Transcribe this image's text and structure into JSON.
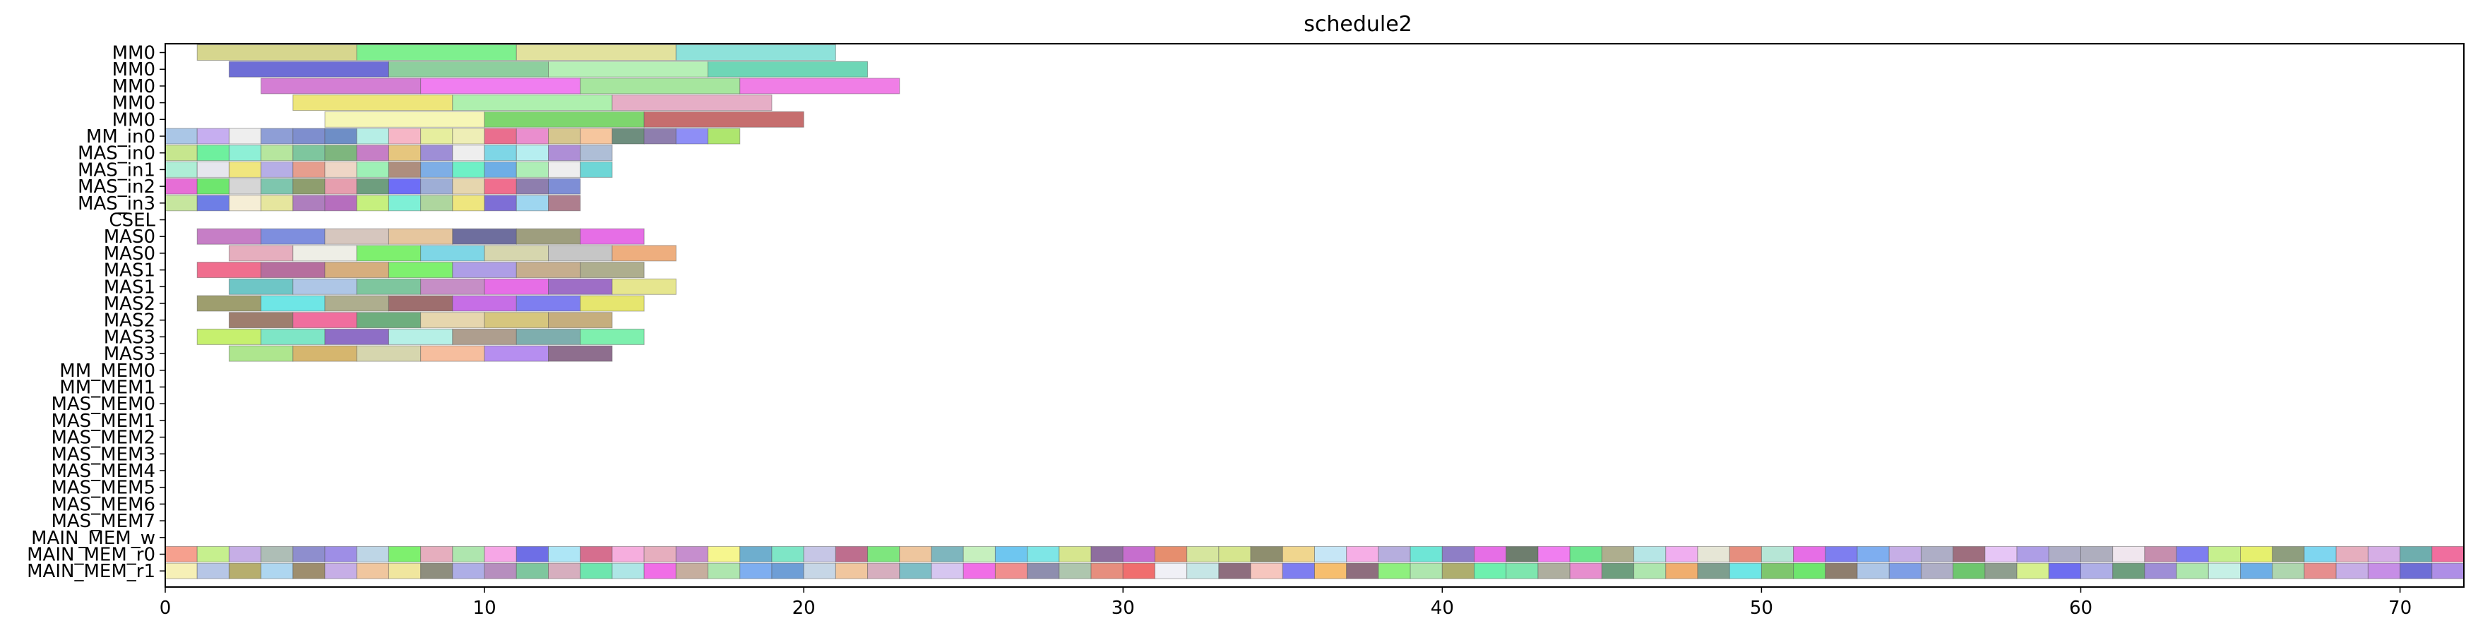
{
  "chart_data": {
    "type": "gantt",
    "title": "schedule2",
    "xlabel": "",
    "ylabel": "",
    "xlim": [
      0,
      72
    ],
    "x_ticks": [
      0,
      10,
      20,
      30,
      40,
      50,
      60,
      70
    ],
    "grid": false,
    "rows": [
      "MM0",
      "MM0",
      "MM0",
      "MM0",
      "MM0",
      "MM_in0",
      "MAS_in0",
      "MAS_in1",
      "MAS_in2",
      "MAS_in3",
      "CSEL",
      "MAS0",
      "MAS0",
      "MAS1",
      "MAS1",
      "MAS2",
      "MAS2",
      "MAS3",
      "MAS3",
      "MM_MEM0",
      "MM_MEM1",
      "MAS_MEM0",
      "MAS_MEM1",
      "MAS_MEM2",
      "MAS_MEM3",
      "MAS_MEM4",
      "MAS_MEM5",
      "MAS_MEM6",
      "MAS_MEM7",
      "MAIN_MEM_w",
      "MAIN_MEM_r0",
      "MAIN_MEM_r1"
    ],
    "tasks": [
      {
        "row": 0,
        "start": 1,
        "end": 6,
        "color": "#d6d68e"
      },
      {
        "row": 0,
        "start": 6,
        "end": 11,
        "color": "#7ef08e"
      },
      {
        "row": 0,
        "start": 11,
        "end": 16,
        "color": "#e2e29e"
      },
      {
        "row": 0,
        "start": 16,
        "end": 21,
        "color": "#8ee2da"
      },
      {
        "row": 1,
        "start": 2,
        "end": 7,
        "color": "#6e6ed6"
      },
      {
        "row": 1,
        "start": 7,
        "end": 12,
        "color": "#8ecf9e"
      },
      {
        "row": 1,
        "start": 12,
        "end": 17,
        "color": "#b6f0b6"
      },
      {
        "row": 1,
        "start": 17,
        "end": 22,
        "color": "#6ed6b6"
      },
      {
        "row": 2,
        "start": 3,
        "end": 8,
        "color": "#d47ed4"
      },
      {
        "row": 2,
        "start": 8,
        "end": 13,
        "color": "#f07ef0"
      },
      {
        "row": 2,
        "start": 13,
        "end": 18,
        "color": "#a6e69e"
      },
      {
        "row": 2,
        "start": 18,
        "end": 23,
        "color": "#f07ee6"
      },
      {
        "row": 3,
        "start": 4,
        "end": 9,
        "color": "#eee67a"
      },
      {
        "row": 3,
        "start": 9,
        "end": 14,
        "color": "#aef0ae"
      },
      {
        "row": 3,
        "start": 14,
        "end": 19,
        "color": "#e6aec6"
      },
      {
        "row": 4,
        "start": 5,
        "end": 10,
        "color": "#f6f6b6"
      },
      {
        "row": 4,
        "start": 10,
        "end": 15,
        "color": "#7ed66e"
      },
      {
        "row": 4,
        "start": 15,
        "end": 20,
        "color": "#c66e6e"
      },
      {
        "row": 5,
        "start": 0,
        "end": 1,
        "color": "#aac6e6"
      },
      {
        "row": 5,
        "start": 1,
        "end": 2,
        "color": "#c6aef0"
      },
      {
        "row": 5,
        "start": 2,
        "end": 3,
        "color": "#eeeeee"
      },
      {
        "row": 5,
        "start": 3,
        "end": 4,
        "color": "#8e9ed6"
      },
      {
        "row": 5,
        "start": 4,
        "end": 5,
        "color": "#7e8ece"
      },
      {
        "row": 5,
        "start": 5,
        "end": 6,
        "color": "#6e8ec6"
      },
      {
        "row": 5,
        "start": 6,
        "end": 7,
        "color": "#b6eee6"
      },
      {
        "row": 5,
        "start": 7,
        "end": 8,
        "color": "#f6b6c6"
      },
      {
        "row": 5,
        "start": 8,
        "end": 9,
        "color": "#e6ee9e"
      },
      {
        "row": 5,
        "start": 9,
        "end": 10,
        "color": "#eeeeb6"
      },
      {
        "row": 5,
        "start": 10,
        "end": 11,
        "color": "#ea6e8e"
      },
      {
        "row": 5,
        "start": 11,
        "end": 12,
        "color": "#ea8ece"
      },
      {
        "row": 5,
        "start": 12,
        "end": 13,
        "color": "#d6c68e"
      },
      {
        "row": 5,
        "start": 13,
        "end": 14,
        "color": "#f6c69e"
      },
      {
        "row": 5,
        "start": 14,
        "end": 15,
        "color": "#6e8e7e"
      },
      {
        "row": 5,
        "start": 15,
        "end": 16,
        "color": "#8e7eae"
      },
      {
        "row": 5,
        "start": 16,
        "end": 17,
        "color": "#8e8ef6"
      },
      {
        "row": 5,
        "start": 17,
        "end": 18,
        "color": "#aee66e"
      },
      {
        "row": 6,
        "start": 0,
        "end": 1,
        "color": "#c6e68e"
      },
      {
        "row": 6,
        "start": 1,
        "end": 2,
        "color": "#6ef09e"
      },
      {
        "row": 6,
        "start": 2,
        "end": 3,
        "color": "#8ef0d6"
      },
      {
        "row": 6,
        "start": 3,
        "end": 4,
        "color": "#b6e69e"
      },
      {
        "row": 6,
        "start": 4,
        "end": 5,
        "color": "#7ec69e"
      },
      {
        "row": 6,
        "start": 5,
        "end": 6,
        "color": "#7eb67e"
      },
      {
        "row": 6,
        "start": 6,
        "end": 7,
        "color": "#c67ec6"
      },
      {
        "row": 6,
        "start": 7,
        "end": 8,
        "color": "#e6c67e"
      },
      {
        "row": 6,
        "start": 8,
        "end": 9,
        "color": "#9e8ed6"
      },
      {
        "row": 6,
        "start": 9,
        "end": 10,
        "color": "#eeeeee"
      },
      {
        "row": 6,
        "start": 10,
        "end": 11,
        "color": "#7ed6e6"
      },
      {
        "row": 6,
        "start": 11,
        "end": 12,
        "color": "#b6eef0"
      },
      {
        "row": 6,
        "start": 12,
        "end": 13,
        "color": "#ae8ed6"
      },
      {
        "row": 6,
        "start": 13,
        "end": 14,
        "color": "#aebed6"
      },
      {
        "row": 7,
        "start": 0,
        "end": 1,
        "color": "#aeeed6"
      },
      {
        "row": 7,
        "start": 1,
        "end": 2,
        "color": "#e6e6ee"
      },
      {
        "row": 7,
        "start": 2,
        "end": 3,
        "color": "#f0e67e"
      },
      {
        "row": 7,
        "start": 3,
        "end": 4,
        "color": "#b6aee6"
      },
      {
        "row": 7,
        "start": 4,
        "end": 5,
        "color": "#e69e8e"
      },
      {
        "row": 7,
        "start": 5,
        "end": 6,
        "color": "#eed6c6"
      },
      {
        "row": 7,
        "start": 6,
        "end": 7,
        "color": "#9ef0b6"
      },
      {
        "row": 7,
        "start": 7,
        "end": 8,
        "color": "#ae8e7e"
      },
      {
        "row": 7,
        "start": 8,
        "end": 9,
        "color": "#7eaee6"
      },
      {
        "row": 7,
        "start": 9,
        "end": 10,
        "color": "#6ef0c6"
      },
      {
        "row": 7,
        "start": 10,
        "end": 11,
        "color": "#6eaee6"
      },
      {
        "row": 7,
        "start": 11,
        "end": 12,
        "color": "#aeeeb6"
      },
      {
        "row": 7,
        "start": 12,
        "end": 13,
        "color": "#eeeeee"
      },
      {
        "row": 7,
        "start": 13,
        "end": 14,
        "color": "#6ed6d6"
      },
      {
        "row": 8,
        "start": 0,
        "end": 1,
        "color": "#e66ed6"
      },
      {
        "row": 8,
        "start": 1,
        "end": 2,
        "color": "#6ee66e"
      },
      {
        "row": 8,
        "start": 2,
        "end": 3,
        "color": "#d6d6d6"
      },
      {
        "row": 8,
        "start": 3,
        "end": 4,
        "color": "#7ec6ae"
      },
      {
        "row": 8,
        "start": 4,
        "end": 5,
        "color": "#8e9e6e"
      },
      {
        "row": 8,
        "start": 5,
        "end": 6,
        "color": "#e69eae"
      },
      {
        "row": 8,
        "start": 6,
        "end": 7,
        "color": "#6e9e7e"
      },
      {
        "row": 8,
        "start": 7,
        "end": 8,
        "color": "#6e6ef6"
      },
      {
        "row": 8,
        "start": 8,
        "end": 9,
        "color": "#9eaed6"
      },
      {
        "row": 8,
        "start": 9,
        "end": 10,
        "color": "#e6d6ae"
      },
      {
        "row": 8,
        "start": 10,
        "end": 11,
        "color": "#f06e8e"
      },
      {
        "row": 8,
        "start": 11,
        "end": 12,
        "color": "#8e7eae"
      },
      {
        "row": 8,
        "start": 12,
        "end": 13,
        "color": "#7e8ed6"
      },
      {
        "row": 9,
        "start": 0,
        "end": 1,
        "color": "#c6e69e"
      },
      {
        "row": 9,
        "start": 1,
        "end": 2,
        "color": "#6e7ee6"
      },
      {
        "row": 9,
        "start": 2,
        "end": 3,
        "color": "#f6eed6"
      },
      {
        "row": 9,
        "start": 3,
        "end": 4,
        "color": "#e6e69e"
      },
      {
        "row": 9,
        "start": 4,
        "end": 5,
        "color": "#ae7ebe"
      },
      {
        "row": 9,
        "start": 5,
        "end": 6,
        "color": "#b66ebe"
      },
      {
        "row": 9,
        "start": 6,
        "end": 7,
        "color": "#c6f07e"
      },
      {
        "row": 9,
        "start": 7,
        "end": 8,
        "color": "#7ef0d6"
      },
      {
        "row": 9,
        "start": 8,
        "end": 9,
        "color": "#aed69e"
      },
      {
        "row": 9,
        "start": 9,
        "end": 10,
        "color": "#eee67e"
      },
      {
        "row": 9,
        "start": 10,
        "end": 11,
        "color": "#7e6ed6"
      },
      {
        "row": 9,
        "start": 11,
        "end": 12,
        "color": "#9ed6f0"
      },
      {
        "row": 9,
        "start": 12,
        "end": 13,
        "color": "#ae7e8e"
      },
      {
        "row": 11,
        "start": 1,
        "end": 3,
        "color": "#c67ec6"
      },
      {
        "row": 11,
        "start": 3,
        "end": 5,
        "color": "#7e8ede"
      },
      {
        "row": 11,
        "start": 5,
        "end": 7,
        "color": "#d6c6be"
      },
      {
        "row": 11,
        "start": 7,
        "end": 9,
        "color": "#e6c69e"
      },
      {
        "row": 11,
        "start": 9,
        "end": 11,
        "color": "#6e6e9e"
      },
      {
        "row": 11,
        "start": 11,
        "end": 13,
        "color": "#9e9e7e"
      },
      {
        "row": 11,
        "start": 13,
        "end": 15,
        "color": "#e66ee6"
      },
      {
        "row": 12,
        "start": 2,
        "end": 4,
        "color": "#e6aebe"
      },
      {
        "row": 12,
        "start": 4,
        "end": 6,
        "color": "#eeeee6"
      },
      {
        "row": 12,
        "start": 6,
        "end": 8,
        "color": "#7ef06e"
      },
      {
        "row": 12,
        "start": 8,
        "end": 10,
        "color": "#7ed6e6"
      },
      {
        "row": 12,
        "start": 10,
        "end": 12,
        "color": "#d6d6ae"
      },
      {
        "row": 12,
        "start": 12,
        "end": 14,
        "color": "#c6c6c6"
      },
      {
        "row": 12,
        "start": 14,
        "end": 16,
        "color": "#eeae7e"
      },
      {
        "row": 13,
        "start": 1,
        "end": 3,
        "color": "#f06e8e"
      },
      {
        "row": 13,
        "start": 3,
        "end": 5,
        "color": "#b66e9e"
      },
      {
        "row": 13,
        "start": 5,
        "end": 7,
        "color": "#d6ae7e"
      },
      {
        "row": 13,
        "start": 7,
        "end": 9,
        "color": "#7ef06e"
      },
      {
        "row": 13,
        "start": 9,
        "end": 11,
        "color": "#ae9ee6"
      },
      {
        "row": 13,
        "start": 11,
        "end": 13,
        "color": "#c6ae8e"
      },
      {
        "row": 13,
        "start": 13,
        "end": 15,
        "color": "#aeae8e"
      },
      {
        "row": 14,
        "start": 2,
        "end": 4,
        "color": "#6ec6c6"
      },
      {
        "row": 14,
        "start": 4,
        "end": 6,
        "color": "#aec6e6"
      },
      {
        "row": 14,
        "start": 6,
        "end": 8,
        "color": "#7ec69e"
      },
      {
        "row": 14,
        "start": 8,
        "end": 10,
        "color": "#c68ec6"
      },
      {
        "row": 14,
        "start": 10,
        "end": 12,
        "color": "#e66ee6"
      },
      {
        "row": 14,
        "start": 12,
        "end": 14,
        "color": "#9e6ec6"
      },
      {
        "row": 14,
        "start": 14,
        "end": 16,
        "color": "#e6e68e"
      },
      {
        "row": 15,
        "start": 1,
        "end": 3,
        "color": "#9e9e6e"
      },
      {
        "row": 15,
        "start": 3,
        "end": 5,
        "color": "#6ee6e6"
      },
      {
        "row": 15,
        "start": 5,
        "end": 7,
        "color": "#aeae8e"
      },
      {
        "row": 15,
        "start": 7,
        "end": 9,
        "color": "#9e6e6e"
      },
      {
        "row": 15,
        "start": 9,
        "end": 11,
        "color": "#c66ee6"
      },
      {
        "row": 15,
        "start": 11,
        "end": 13,
        "color": "#7e7ef0"
      },
      {
        "row": 15,
        "start": 13,
        "end": 15,
        "color": "#e6e66e"
      },
      {
        "row": 16,
        "start": 2,
        "end": 4,
        "color": "#9e7e6e"
      },
      {
        "row": 16,
        "start": 4,
        "end": 6,
        "color": "#f06e9e"
      },
      {
        "row": 16,
        "start": 6,
        "end": 8,
        "color": "#6eae7e"
      },
      {
        "row": 16,
        "start": 8,
        "end": 10,
        "color": "#e6d6ae"
      },
      {
        "row": 16,
        "start": 10,
        "end": 12,
        "color": "#d6c67e"
      },
      {
        "row": 16,
        "start": 12,
        "end": 14,
        "color": "#c6ae7e"
      },
      {
        "row": 17,
        "start": 1,
        "end": 3,
        "color": "#c6f06e"
      },
      {
        "row": 17,
        "start": 3,
        "end": 5,
        "color": "#7ee6c6"
      },
      {
        "row": 17,
        "start": 5,
        "end": 7,
        "color": "#8e6ec6"
      },
      {
        "row": 17,
        "start": 7,
        "end": 9,
        "color": "#b6f0e6"
      },
      {
        "row": 17,
        "start": 9,
        "end": 11,
        "color": "#ae9e8e"
      },
      {
        "row": 17,
        "start": 11,
        "end": 13,
        "color": "#7eaeae"
      },
      {
        "row": 17,
        "start": 13,
        "end": 15,
        "color": "#7ef0ae"
      },
      {
        "row": 18,
        "start": 2,
        "end": 4,
        "color": "#aee68e"
      },
      {
        "row": 18,
        "start": 4,
        "end": 6,
        "color": "#d6b66e"
      },
      {
        "row": 18,
        "start": 6,
        "end": 8,
        "color": "#d6d6ae"
      },
      {
        "row": 18,
        "start": 8,
        "end": 10,
        "color": "#f6be9e"
      },
      {
        "row": 18,
        "start": 10,
        "end": 12,
        "color": "#b68ef0"
      },
      {
        "row": 18,
        "start": 12,
        "end": 14,
        "color": "#8e6e8e"
      }
    ],
    "colored_rows": [
      {
        "row": 30,
        "start": 0,
        "end": 72,
        "colors": [
          "#f6a08e",
          "#c6f08e",
          "#c6aee6",
          "#aebeb6",
          "#8e8ece",
          "#9e8ee6",
          "#bed6e6",
          "#7ef06e",
          "#e6aebe",
          "#aee6ae",
          "#f6a6e6",
          "#6e6ee6",
          "#aee6f6",
          "#d66e8e",
          "#f6aede",
          "#e6aebe",
          "#c68ece",
          "#f6f68e",
          "#6eaece",
          "#7ee6c6",
          "#c6c6e6",
          "#be6e8e",
          "#7ee67e",
          "#eec69e",
          "#7eb6be",
          "#c6f0be",
          "#6ec6f0",
          "#7ee6e6",
          "#d6e68e",
          "#8e6e9e",
          "#c66ece",
          "#e68e6e",
          "#d6e69e",
          "#d6e68e",
          "#8e8e6e",
          "#f0d68e",
          "#c6e6f6",
          "#f6aee6",
          "#b6aede",
          "#6ee6d6",
          "#8e7ec6",
          "#e66ee6",
          "#6e7e6e",
          "#f07ef0",
          "#6ee68e",
          "#aeae8e",
          "#b6e6e6",
          "#f0aef0",
          "#e6e6d6",
          "#e68e7e",
          "#b6e6d6",
          "#e66ee6",
          "#7e7ef0",
          "#7eaef0",
          "#c6aee6",
          "#aeaec6",
          "#9e6e7e",
          "#e6c6f6",
          "#ae9ee6",
          "#aeaec6",
          "#aeaebe",
          "#f0e6ee",
          "#c68eae",
          "#7e7ef0",
          "#c6f08e",
          "#e6f06e",
          "#8e9e7e",
          "#7ed6f0",
          "#e6aebe",
          "#d6aee6",
          "#6eaeae",
          "#f06e9e"
        ]
      },
      {
        "row": 31,
        "start": 0,
        "end": 72,
        "colors": [
          "#f6f0b6",
          "#b6c6e6",
          "#b6ae6e",
          "#aed6f0",
          "#9e8e6e",
          "#c6aee6",
          "#f0c69e",
          "#f0e69e",
          "#8e8e7e",
          "#aeaee6",
          "#b68ebe",
          "#7ec69e",
          "#d6aebe",
          "#6ee6ae",
          "#aee6e6",
          "#f06ee6",
          "#c6ae9e",
          "#aee6ae",
          "#7eaef0",
          "#6e9ed6",
          "#c6d6e6",
          "#f0c69e",
          "#d6aebe",
          "#7ebec6",
          "#d6c6f0",
          "#f06ee6",
          "#f08e8e",
          "#8e8eae",
          "#aec6ae",
          "#e68e7e",
          "#f06e6e",
          "#f0f0f6",
          "#c6e6e6",
          "#8e6e7e",
          "#f6c6be",
          "#7e7ef0",
          "#f6be6e",
          "#8e6e7e",
          "#8ef07e",
          "#aee6ae",
          "#aeae6e",
          "#6ef0ae",
          "#7ee6ae",
          "#aeae9e",
          "#e68ece",
          "#6e9e7e",
          "#aee6ae",
          "#f0ae6e",
          "#7e9e8e",
          "#6ee6e6",
          "#7ec66e",
          "#6ee66e",
          "#8e7e6e",
          "#aec6e6",
          "#7e9ee6",
          "#aeaec6",
          "#6ec66e",
          "#8e9e8e",
          "#d6f08e",
          "#6e6ef0",
          "#aeaee6",
          "#6e9e7e",
          "#9e8ed6",
          "#aee6ae",
          "#c6f0e6",
          "#6eaee6",
          "#aed6ae",
          "#e68e8e",
          "#c6aee6",
          "#c68ee6",
          "#6e6ed6",
          "#ae8ee6"
        ]
      }
    ]
  }
}
